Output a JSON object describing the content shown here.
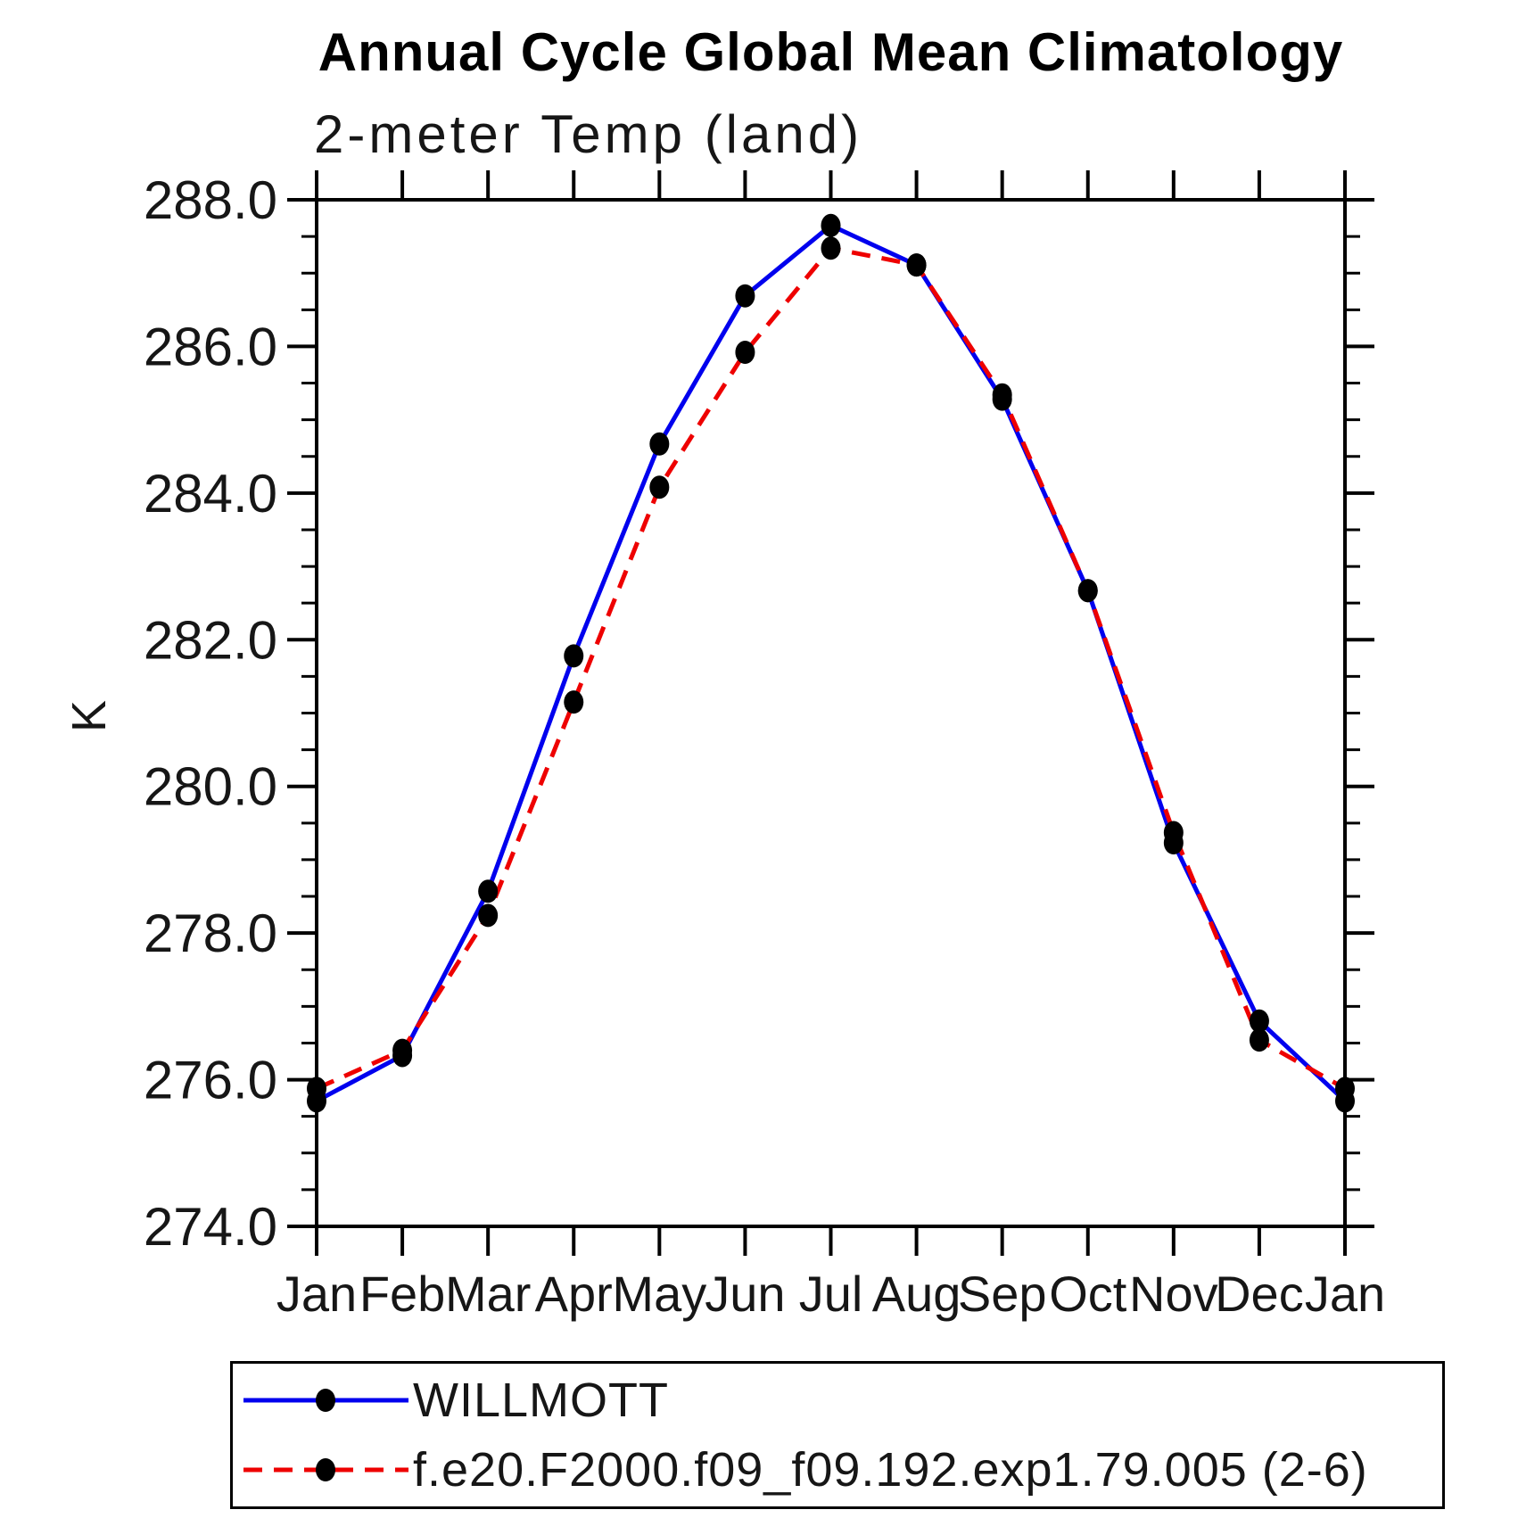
{
  "chart": {
    "title": "Annual Cycle Global Mean Climatology",
    "subtitle": "2-meter Temp (land)",
    "ylabel": "K"
  },
  "chart_data": {
    "type": "line",
    "title": "Annual Cycle Global Mean Climatology",
    "subtitle": "2-meter Temp (land)",
    "xlabel": "",
    "ylabel": "K",
    "x_categories": [
      "Jan",
      "Feb",
      "Mar",
      "Apr",
      "May",
      "Jun",
      "Jul",
      "Aug",
      "Sep",
      "Oct",
      "Nov",
      "Dec",
      "Jan"
    ],
    "ylim": [
      274.0,
      288.0
    ],
    "y_major_step": 2.0,
    "y_minor_step": 0.5,
    "y_tick_labels": [
      "274.0",
      "276.0",
      "278.0",
      "280.0",
      "282.0",
      "284.0",
      "286.0",
      "288.0"
    ],
    "grid": false,
    "legend_position": "bottom",
    "marker_color": "#000000",
    "series": [
      {
        "name": "WILLMOTT",
        "color": "#0000ee",
        "style": "solid",
        "marker": "filled-black-dot",
        "values": [
          275.71,
          276.33,
          278.57,
          281.78,
          284.67,
          286.69,
          287.65,
          287.11,
          285.28,
          282.67,
          279.23,
          276.8,
          275.71
        ]
      },
      {
        "name": "f.e20.F2000.f09_f09.192.exp1.79.005 (2-6)",
        "color": "#ee0000",
        "style": "dashed",
        "marker": "filled-black-dot",
        "values": [
          275.88,
          276.4,
          278.24,
          281.15,
          284.08,
          285.92,
          287.34,
          287.11,
          285.34,
          282.67,
          279.37,
          276.54,
          275.88
        ]
      }
    ]
  }
}
